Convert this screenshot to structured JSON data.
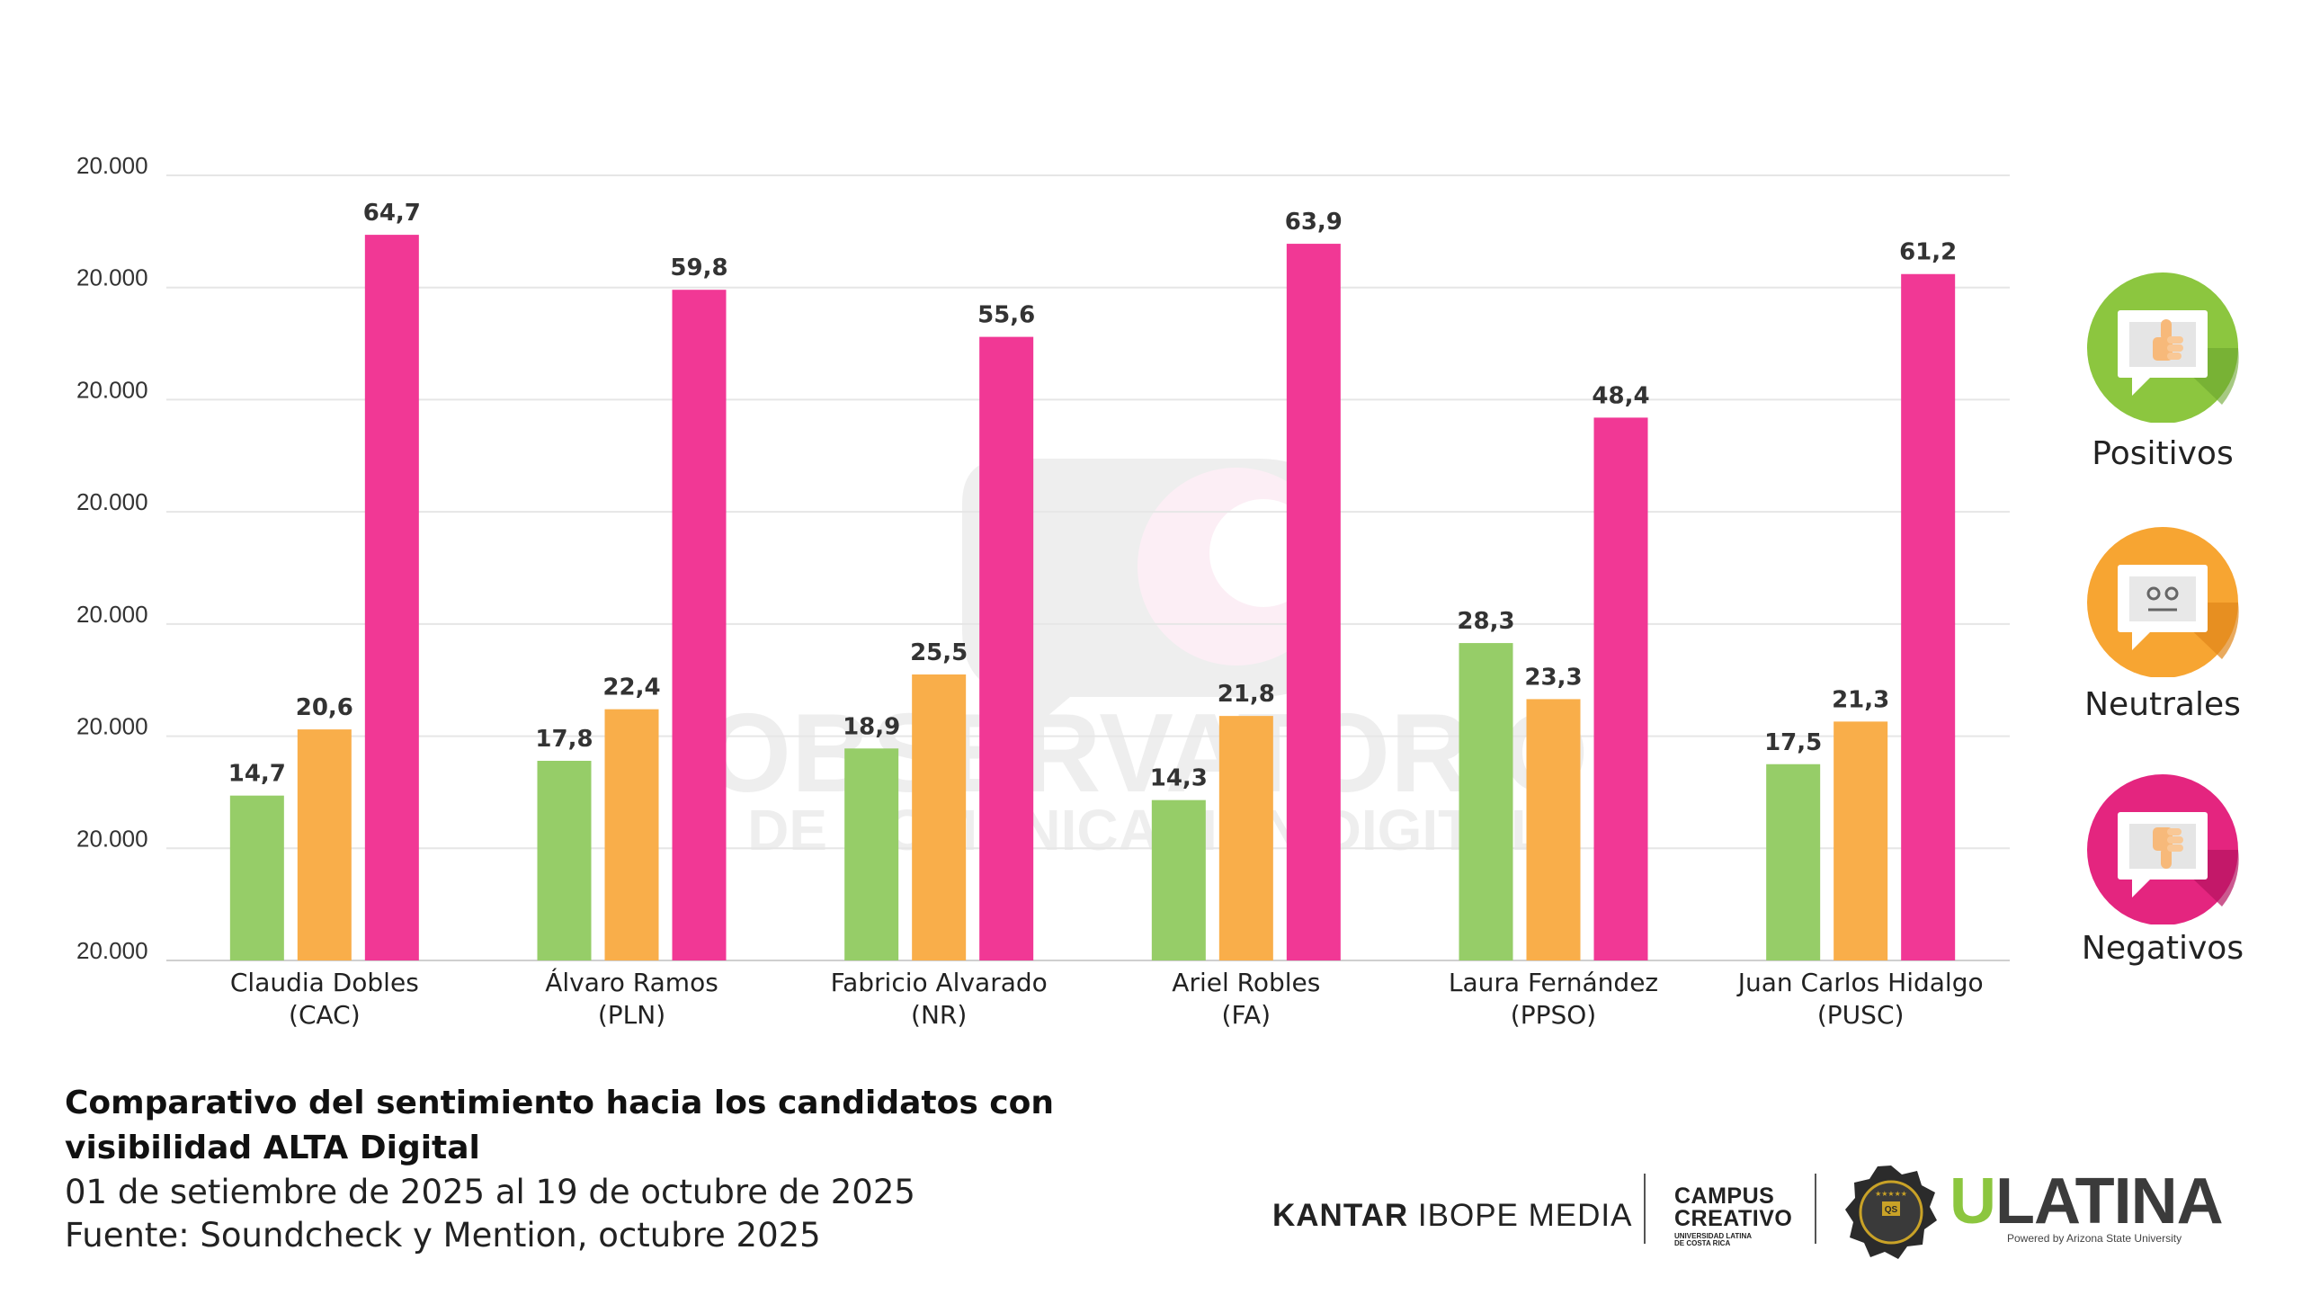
{
  "chart_data": {
    "type": "bar",
    "categories": [
      [
        "Claudia Dobles",
        "(CAC)"
      ],
      [
        "Álvaro Ramos",
        "(PLN)"
      ],
      [
        "Fabricio Alvarado",
        "(NR)"
      ],
      [
        "Ariel Robles",
        "(FA)"
      ],
      [
        "Laura Fernández",
        "(PPSO)"
      ],
      [
        "Juan Carlos Hidalgo",
        "(PUSC)"
      ]
    ],
    "series": [
      {
        "name": "Positivos",
        "color": "#96cd68",
        "values": [
          14.7,
          17.8,
          18.9,
          14.3,
          28.3,
          17.5
        ],
        "labels": [
          "14,7",
          "17,8",
          "18,9",
          "14,3",
          "28,3",
          "17,5"
        ]
      },
      {
        "name": "Neutrales",
        "color": "#f9ae4a",
        "values": [
          20.6,
          22.4,
          25.5,
          21.8,
          23.3,
          21.3
        ],
        "labels": [
          "20,6",
          "22,4",
          "25,5",
          "21,8",
          "23,3",
          "21,3"
        ]
      },
      {
        "name": "Negativos",
        "color": "#f13895",
        "values": [
          64.7,
          59.8,
          55.6,
          63.9,
          48.4,
          61.2
        ],
        "labels": [
          "64,7",
          "59,8",
          "55,6",
          "63,9",
          "48,4",
          "61,2"
        ]
      }
    ],
    "yticks": [
      "20.000",
      "20.000",
      "20.000",
      "20.000",
      "20.000",
      "20.000",
      "20.000",
      "20.000"
    ],
    "ylim": [
      0,
      70
    ],
    "grid": true,
    "legend": "right"
  },
  "legend": {
    "positive": {
      "label": "Positivos",
      "color": "#8cc63f",
      "icon": "thumbs-up-icon"
    },
    "neutral": {
      "label": "Neutrales",
      "color": "#f7a532",
      "icon": "neutral-face-icon"
    },
    "negative": {
      "label": "Negativos",
      "color": "#e4257f",
      "icon": "thumbs-down-icon"
    }
  },
  "caption": {
    "title_line1": "Comparativo del sentimiento hacia los candidatos con",
    "title_line2": "visibilidad ALTA Digital",
    "period": "01 de setiembre de 2025 al 19 de octubre de 2025",
    "source": "Fuente: Soundcheck y Mention, octubre 2025"
  },
  "watermark": {
    "line1": "OBSERVATORIO",
    "line2": "DE COMUNICACIÓN DIGITAL"
  },
  "logos": {
    "kantar_bold": "KANTAR",
    "kantar_rest": "IBOPE MEDIA",
    "campus_line1": "CAMPUS",
    "campus_line2": "CREATIVO",
    "campus_sub1": "UNIVERSIDAD LATINA",
    "campus_sub2": "DE COSTA RICA",
    "qs_badge": "QS",
    "ulatina_u": "U",
    "ulatina_rest": "LATINA",
    "ulatina_sub": "Powered by Arizona State University"
  }
}
